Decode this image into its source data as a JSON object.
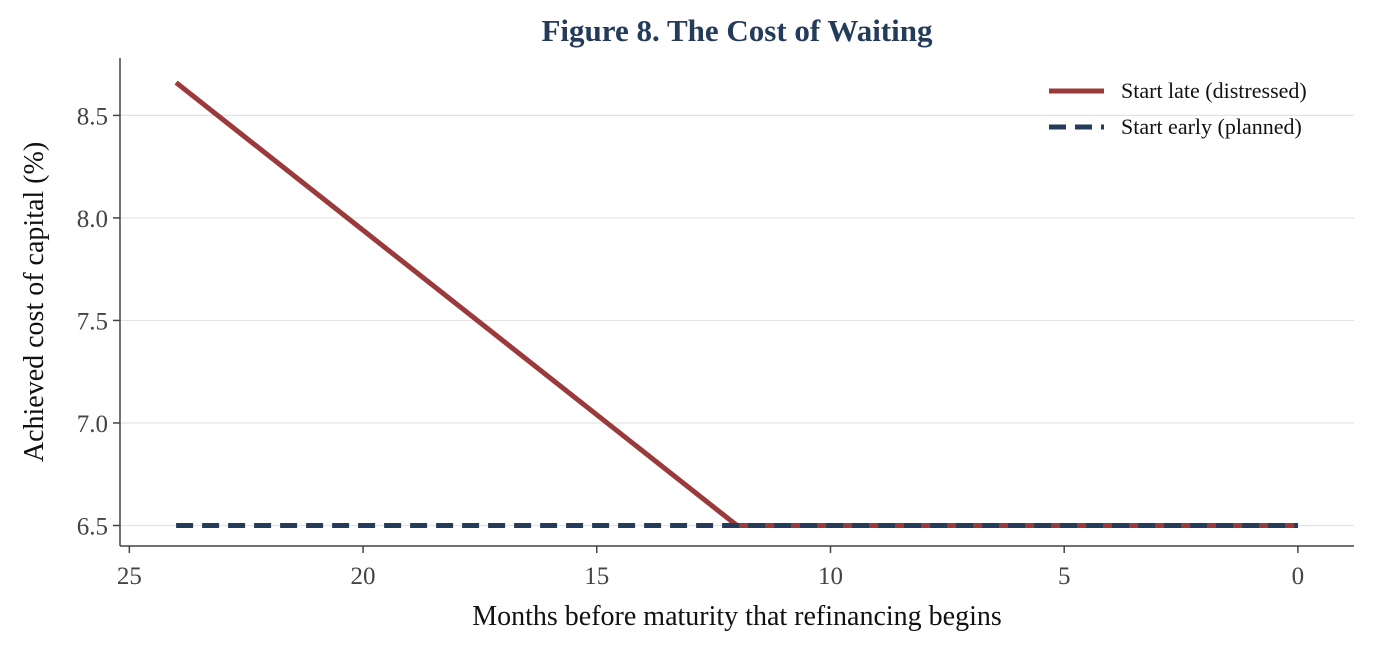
{
  "chart_data": {
    "type": "line",
    "title": "Figure 8. The Cost of Waiting",
    "xlabel": "Months before maturity that refinancing begins",
    "ylabel": "Achieved cost of capital (%)",
    "xlim": [
      25.2,
      -1.2
    ],
    "ylim": [
      6.4,
      8.78
    ],
    "x_inverted": true,
    "xticks": [
      25,
      20,
      15,
      10,
      5,
      0
    ],
    "yticks": [
      6.5,
      7.0,
      7.5,
      8.0,
      8.5
    ],
    "grid": "horizontal",
    "legend_position": "top-right",
    "series": [
      {
        "name": "Start late (distressed)",
        "color": "#9b3a3a",
        "style": "solid",
        "x": [
          24,
          12,
          0
        ],
        "y": [
          8.66,
          6.5,
          6.5
        ]
      },
      {
        "name": "Start early (planned)",
        "color": "#243b5a",
        "style": "dashed",
        "x": [
          24,
          0
        ],
        "y": [
          6.5,
          6.5
        ]
      }
    ]
  }
}
